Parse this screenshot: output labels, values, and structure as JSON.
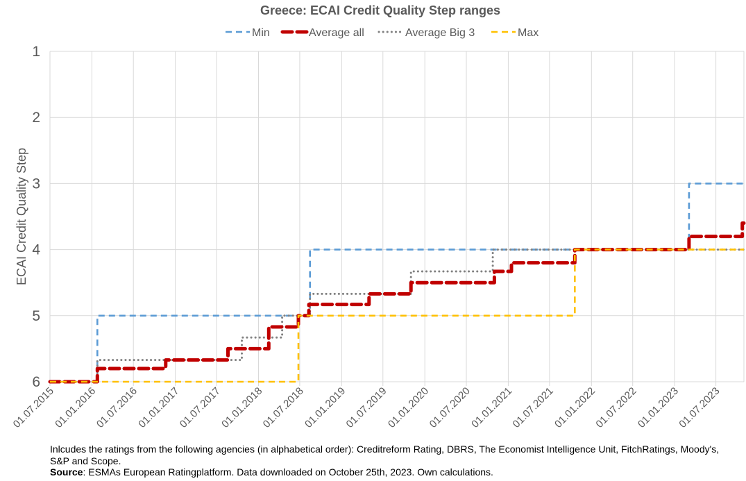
{
  "chart_data": {
    "type": "line",
    "step": true,
    "title": "Greece: ECAI Credit Quality Step ranges",
    "ylabel": "ECAI Credit Quality Step",
    "xlabel": "",
    "y_reversed": true,
    "ylim": [
      1,
      6
    ],
    "yticks": [
      "1",
      "2",
      "3",
      "4",
      "5",
      "6"
    ],
    "xlim": [
      "2015-07-01",
      "2023-11-01"
    ],
    "xticks": [
      "01.07.2015",
      "01.01.2016",
      "01.07.2016",
      "01.01.2017",
      "01.07.2017",
      "01.01.2018",
      "01.07.2018",
      "01.01.2019",
      "01.07.2019",
      "01.01.2020",
      "01.07.2020",
      "01.01.2021",
      "01.07.2021",
      "01.01.2022",
      "01.07.2022",
      "01.01.2023",
      "01.07.2023"
    ],
    "grid": true,
    "legend_position": "top",
    "series": [
      {
        "name": "Min",
        "color": "#5b9bd5",
        "dash": "dashed",
        "points": [
          [
            "2015-07-01",
            6.0
          ],
          [
            "2016-01-25",
            6.0
          ],
          [
            "2016-01-25",
            5.0
          ],
          [
            "2018-08-15",
            5.0
          ],
          [
            "2018-08-15",
            4.0
          ],
          [
            "2022-12-01",
            4.0
          ],
          [
            "2023-03-05",
            4.0
          ],
          [
            "2023-03-05",
            3.0
          ],
          [
            "2023-11-01",
            3.0
          ]
        ]
      },
      {
        "name": "Average all",
        "color": "#c00000",
        "dash": "heavy-dashed",
        "points": [
          [
            "2015-07-01",
            6.0
          ],
          [
            "2016-01-25",
            6.0
          ],
          [
            "2016-01-25",
            5.8
          ],
          [
            "2016-11-20",
            5.8
          ],
          [
            "2016-11-20",
            5.67
          ],
          [
            "2017-08-20",
            5.67
          ],
          [
            "2017-08-20",
            5.5
          ],
          [
            "2018-02-15",
            5.5
          ],
          [
            "2018-02-15",
            5.17
          ],
          [
            "2018-06-25",
            5.17
          ],
          [
            "2018-06-25",
            5.0
          ],
          [
            "2018-08-10",
            5.0
          ],
          [
            "2018-08-10",
            4.83
          ],
          [
            "2019-05-01",
            4.83
          ],
          [
            "2019-05-01",
            4.67
          ],
          [
            "2019-11-01",
            4.67
          ],
          [
            "2019-11-01",
            4.5
          ],
          [
            "2020-11-01",
            4.5
          ],
          [
            "2020-11-01",
            4.33
          ],
          [
            "2021-01-15",
            4.33
          ],
          [
            "2021-01-15",
            4.2
          ],
          [
            "2021-10-20",
            4.2
          ],
          [
            "2021-10-20",
            4.0
          ],
          [
            "2023-03-05",
            4.0
          ],
          [
            "2023-03-05",
            3.8
          ],
          [
            "2023-10-25",
            3.8
          ],
          [
            "2023-10-25",
            3.6
          ],
          [
            "2023-11-01",
            3.6
          ]
        ]
      },
      {
        "name": "Average Big 3",
        "color": "#808080",
        "dash": "dotted",
        "points": [
          [
            "2015-07-01",
            6.0
          ],
          [
            "2016-01-25",
            6.0
          ],
          [
            "2016-01-25",
            5.67
          ],
          [
            "2017-10-20",
            5.67
          ],
          [
            "2017-10-20",
            5.33
          ],
          [
            "2018-04-15",
            5.33
          ],
          [
            "2018-04-15",
            5.0
          ],
          [
            "2018-08-15",
            5.0
          ],
          [
            "2018-08-15",
            4.67
          ],
          [
            "2019-11-01",
            4.67
          ],
          [
            "2019-11-01",
            4.33
          ],
          [
            "2020-10-25",
            4.33
          ],
          [
            "2020-10-25",
            4.0
          ],
          [
            "2023-10-25",
            4.0
          ],
          [
            "2023-11-01",
            4.0
          ]
        ]
      },
      {
        "name": "Max",
        "color": "#ffc000",
        "dash": "dashed",
        "points": [
          [
            "2015-07-01",
            6.0
          ],
          [
            "2018-06-25",
            6.0
          ],
          [
            "2018-06-25",
            5.0
          ],
          [
            "2021-10-20",
            5.0
          ],
          [
            "2021-10-20",
            4.0
          ],
          [
            "2023-11-01",
            4.0
          ]
        ]
      }
    ]
  },
  "footer": {
    "note": "Inlcudes the ratings from the following agencies (in alphabetical order): Creditreform Rating, DBRS, The Economist Intelligence Unit, FitchRatings, Moody's, S&P and Scope.",
    "source_label": "Source",
    "source_text": ": ESMAs European Ratingplatform. Data downloaded on October 25th, 2023. Own calculations."
  }
}
